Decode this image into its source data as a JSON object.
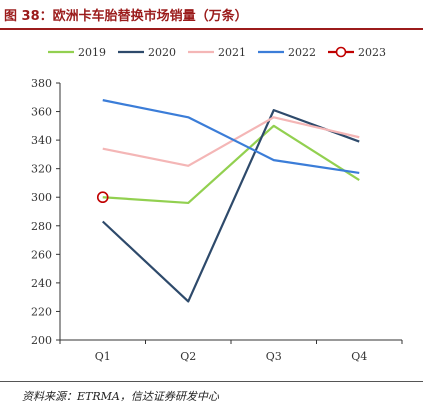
{
  "header": {
    "title": "图 38：欧洲卡车胎替换市场销量（万条）"
  },
  "footer": {
    "source": "资料来源：ETRMA，信达证券研发中心"
  },
  "chart_data": {
    "type": "line",
    "title": "",
    "xlabel": "",
    "ylabel": "",
    "categories": [
      "Q1",
      "Q2",
      "Q3",
      "Q4"
    ],
    "ylim": [
      200,
      380
    ],
    "yticks": [
      200,
      220,
      240,
      260,
      280,
      300,
      320,
      340,
      360,
      380
    ],
    "grid": false,
    "legend_position": "top",
    "series": [
      {
        "name": "2019",
        "color": "#92d050",
        "values": [
          300,
          296,
          350,
          312
        ]
      },
      {
        "name": "2020",
        "color": "#2e4a6b",
        "values": [
          283,
          227,
          361,
          339
        ]
      },
      {
        "name": "2021",
        "color": "#f4b6b6",
        "values": [
          334,
          322,
          356,
          342
        ]
      },
      {
        "name": "2022",
        "color": "#3b7dd8",
        "values": [
          368,
          356,
          326,
          317
        ]
      },
      {
        "name": "2023",
        "color": "#c00000",
        "marker": "circle",
        "values": [
          300,
          null,
          null,
          null
        ]
      }
    ]
  }
}
